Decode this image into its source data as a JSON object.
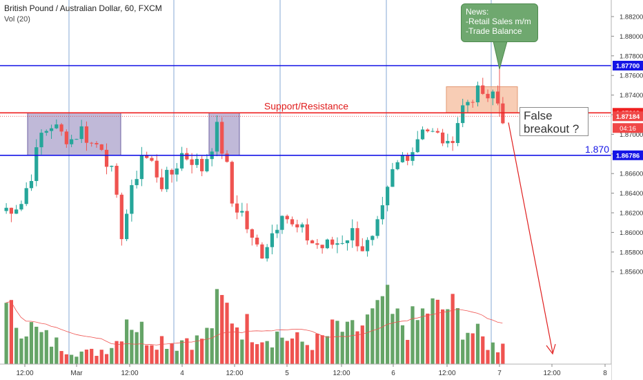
{
  "header": {
    "title": "British Pound / Australian Dollar, 60, FXCM",
    "volume_label": "Vol (20)"
  },
  "colors": {
    "up": "#26a69a",
    "down": "#ef5350",
    "vol_up": "#65a467",
    "vol_down": "#ef5350",
    "blue_line": "#1414e6",
    "red_line": "#ef1f1f",
    "range_box": "#8c7fb8",
    "breakout_box": "#f5b895",
    "grid_vline": "#4a7fc0"
  },
  "annotations": {
    "support_resistance": "Support/Resistance",
    "news_lines": [
      "News:",
      "-Retail Sales m/m",
      "-Trade Balance"
    ],
    "false_breakout_lines": [
      "False",
      "breakout ?"
    ],
    "level_label": "1.870"
  },
  "chart_data": {
    "type": "candlestick",
    "symbol": "British Pound / Australian Dollar",
    "timeframe": "60",
    "source": "FXCM",
    "y_axis": {
      "ticks": [
        "1.88200",
        "1.88000",
        "1.87800",
        "1.87600",
        "1.87400",
        "1.87200",
        "1.87000",
        "1.86800",
        "1.86600",
        "1.86400",
        "1.86200",
        "1.86000",
        "1.85800",
        "1.85600"
      ],
      "range": [
        1.8545,
        1.8832
      ]
    },
    "x_axis": {
      "ticks": [
        "12:00",
        "Mar",
        "12:00",
        "4",
        "12:00",
        "5",
        "12:00",
        "6",
        "12:00",
        "7",
        "12:00",
        "8"
      ]
    },
    "price_labels": {
      "upper_blue": "1.87700",
      "red_level": "1.87219",
      "last_price": "1.87184",
      "countdown": "04:16",
      "lower_blue": "1.86786"
    },
    "levels": {
      "upper_blue": 1.877,
      "support_resistance": 1.87219,
      "last_price": 1.87184,
      "lower_blue": 1.86786
    },
    "trend": [
      {
        "x": 0,
        "y": 1.8622
      },
      {
        "x": 4,
        "y": 1.863
      },
      {
        "x": 6,
        "y": 1.866
      },
      {
        "x": 8,
        "y": 1.87
      },
      {
        "x": 10,
        "y": 1.871
      },
      {
        "x": 12,
        "y": 1.87
      },
      {
        "x": 14,
        "y": 1.8695
      },
      {
        "x": 16,
        "y": 1.8705
      },
      {
        "x": 18,
        "y": 1.869
      },
      {
        "x": 20,
        "y": 1.869
      },
      {
        "x": 22,
        "y": 1.866
      },
      {
        "x": 24,
        "y": 1.86
      },
      {
        "x": 26,
        "y": 1.864
      },
      {
        "x": 28,
        "y": 1.868
      },
      {
        "x": 30,
        "y": 1.867
      },
      {
        "x": 32,
        "y": 1.865
      },
      {
        "x": 34,
        "y": 1.866
      },
      {
        "x": 36,
        "y": 1.868
      },
      {
        "x": 38,
        "y": 1.8675
      },
      {
        "x": 40,
        "y": 1.8665
      },
      {
        "x": 42,
        "y": 1.869
      },
      {
        "x": 43,
        "y": 1.8705
      },
      {
        "x": 45,
        "y": 1.8665
      },
      {
        "x": 46,
        "y": 1.863
      },
      {
        "x": 48,
        "y": 1.862
      },
      {
        "x": 50,
        "y": 1.859
      },
      {
        "x": 52,
        "y": 1.858
      },
      {
        "x": 55,
        "y": 1.861
      },
      {
        "x": 56,
        "y": 1.8625
      },
      {
        "x": 58,
        "y": 1.8605
      },
      {
        "x": 60,
        "y": 1.86
      },
      {
        "x": 62,
        "y": 1.859
      },
      {
        "x": 64,
        "y": 1.8585
      },
      {
        "x": 67,
        "y": 1.859
      },
      {
        "x": 70,
        "y": 1.86
      },
      {
        "x": 72,
        "y": 1.8585
      },
      {
        "x": 74,
        "y": 1.859
      },
      {
        "x": 76,
        "y": 1.862
      },
      {
        "x": 78,
        "y": 1.866
      },
      {
        "x": 80,
        "y": 1.8678
      },
      {
        "x": 82,
        "y": 1.8685
      },
      {
        "x": 84,
        "y": 1.871
      },
      {
        "x": 86,
        "y": 1.87
      },
      {
        "x": 88,
        "y": 1.8695
      },
      {
        "x": 89,
        "y": 1.8685
      },
      {
        "x": 90,
        "y": 1.87
      },
      {
        "x": 92,
        "y": 1.8728
      },
      {
        "x": 94,
        "y": 1.874
      },
      {
        "x": 96,
        "y": 1.8742
      },
      {
        "x": 97,
        "y": 1.873
      },
      {
        "x": 98,
        "y": 1.8742
      },
      {
        "x": 99,
        "y": 1.8732
      },
      {
        "x": 100,
        "y": 1.8718
      }
    ],
    "volume_trend": [
      {
        "x": 0,
        "y": 52
      },
      {
        "x": 3,
        "y": 48
      },
      {
        "x": 5,
        "y": 38
      },
      {
        "x": 7,
        "y": 30
      },
      {
        "x": 10,
        "y": 22
      },
      {
        "x": 12,
        "y": 18
      },
      {
        "x": 14,
        "y": 14
      },
      {
        "x": 16,
        "y": 12
      },
      {
        "x": 18,
        "y": 13
      },
      {
        "x": 20,
        "y": 18
      },
      {
        "x": 22,
        "y": 25
      },
      {
        "x": 24,
        "y": 55
      },
      {
        "x": 26,
        "y": 42
      },
      {
        "x": 28,
        "y": 30
      },
      {
        "x": 30,
        "y": 28
      },
      {
        "x": 32,
        "y": 26
      },
      {
        "x": 34,
        "y": 22
      },
      {
        "x": 36,
        "y": 30
      },
      {
        "x": 38,
        "y": 25
      },
      {
        "x": 40,
        "y": 32
      },
      {
        "x": 42,
        "y": 58
      },
      {
        "x": 43,
        "y": 62
      },
      {
        "x": 45,
        "y": 55
      },
      {
        "x": 46,
        "y": 45
      },
      {
        "x": 48,
        "y": 40
      },
      {
        "x": 50,
        "y": 35
      },
      {
        "x": 52,
        "y": 30
      },
      {
        "x": 54,
        "y": 32
      },
      {
        "x": 56,
        "y": 28
      },
      {
        "x": 58,
        "y": 25
      },
      {
        "x": 60,
        "y": 22
      },
      {
        "x": 62,
        "y": 24
      },
      {
        "x": 64,
        "y": 30
      },
      {
        "x": 66,
        "y": 40
      },
      {
        "x": 68,
        "y": 32
      },
      {
        "x": 70,
        "y": 38
      },
      {
        "x": 72,
        "y": 45
      },
      {
        "x": 74,
        "y": 50
      },
      {
        "x": 75,
        "y": 70
      },
      {
        "x": 77,
        "y": 48
      },
      {
        "x": 80,
        "y": 42
      },
      {
        "x": 82,
        "y": 45
      },
      {
        "x": 84,
        "y": 60
      },
      {
        "x": 86,
        "y": 55
      },
      {
        "x": 88,
        "y": 62
      },
      {
        "x": 90,
        "y": 50
      },
      {
        "x": 92,
        "y": 38
      },
      {
        "x": 94,
        "y": 30
      },
      {
        "x": 96,
        "y": 22
      },
      {
        "x": 98,
        "y": 18
      },
      {
        "x": 99,
        "y": 30
      },
      {
        "x": 100,
        "y": 25
      }
    ]
  }
}
